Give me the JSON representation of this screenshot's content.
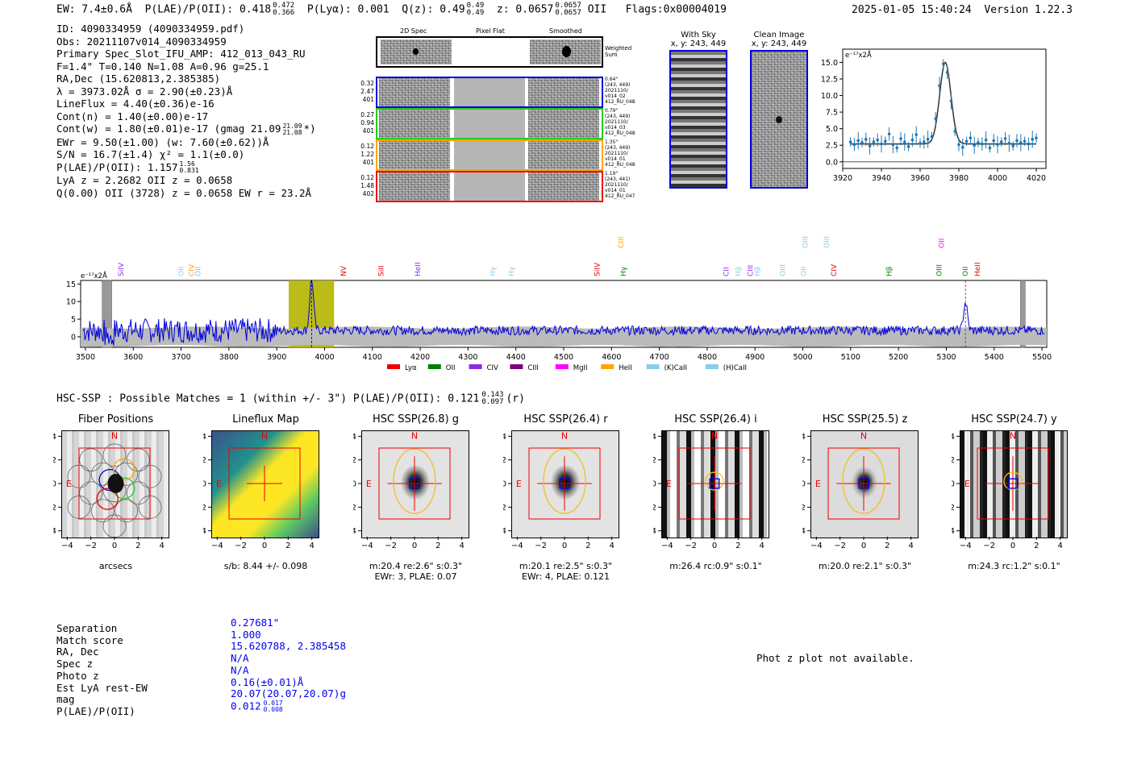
{
  "header": {
    "ew": "EW: 7.4±0.6Å",
    "plae_label": "P(LAE)/P(OII): 0.418",
    "plae_hi": "0.472",
    "plae_lo": "0.366",
    "plya": "P(Lyα): 0.001",
    "qz_label": "Q(z): 0.49",
    "qz_hi": "0.49",
    "qz_lo": "0.49",
    "z_label": "z: 0.0657",
    "z_hi": "0.0657",
    "z_lo": "0.0657",
    "z_line": "OII",
    "flags": "Flags:0x00004019",
    "timestamp": "2025-01-05 15:40:24",
    "version": "Version 1.22.3"
  },
  "info": {
    "id": "ID: 4090334959 (4090334959.pdf)",
    "obs": "Obs: 20211107v014_4090334959",
    "primary": "Primary Spec_Slot_IFU_AMP: 412_013_043_RU",
    "fiber": "F=1.4\"  T=0.140  N=1.08  A=0.96  g=25.1",
    "radec": "RA,Dec (15.620813,2.385385)",
    "lambda": "λ = 3973.02Å  σ = 2.90(±0.23)Å",
    "lineflux": "LineFlux = 4.40(±0.36)e-16",
    "contn": "Cont(n) = 1.40(±0.00)e-17",
    "contw": "Cont(w) = 1.80(±0.01)e-17 (gmag 21.09",
    "contw_hi": "21.09",
    "contw_lo": "21.08",
    "contw_end": "*)",
    "ewr": "EWr = 9.50(±1.00) (w: 7.60(±0.62))Å",
    "sn": "S/N = 16.7(±1.4)  χ² = 1.1(±0.0)",
    "plae": "P(LAE)/P(OII): 1.157",
    "plae_hi": "1.56",
    "plae_lo": "0.831",
    "lya": "LyA z = 2.2682  OII z = 0.0658",
    "q": "Q(0.00) OII (3728) z = 0.0658  EW r = 23.2Å"
  },
  "spec2d": {
    "col_titles": [
      "2D Spec",
      "Pixel Flat",
      "Smoothed"
    ],
    "weighted_label": "Weighted Sum",
    "rows": [
      {
        "left": [
          "0.32",
          "2.47",
          "401"
        ],
        "right": [
          "0.64\"",
          "(243, 449)",
          "2021110/",
          "v014_02",
          "412_RU_048"
        ],
        "color": "#0000dd"
      },
      {
        "left": [
          "0.27",
          "0.94",
          "401"
        ],
        "right": [
          "0.79\"",
          "(243, 449)",
          "2021110/",
          "v014_03",
          "412_RU_048"
        ],
        "color": "#22cc22"
      },
      {
        "left": [
          "0.12",
          "1.22",
          "401"
        ],
        "right": [
          "1.35\"",
          "(243, 449)",
          "2021110/",
          "v014_01",
          "412_RU_048"
        ],
        "color": "#ffa500"
      },
      {
        "left": [
          "0.12",
          "1.48",
          "402"
        ],
        "right": [
          "1.19\"",
          "(243, 441)",
          "2021110/",
          "v014_01",
          "412_RU_047"
        ],
        "color": "#ee0000"
      }
    ]
  },
  "sky": {
    "with_sky_title": "With Sky",
    "with_sky_xy": "x, y: 243, 449",
    "clean_title": "Clean Image",
    "clean_xy": "x, y: 243, 449"
  },
  "hsc": {
    "title": "HSC-SSP : Possible Matches = 1 (within +/- 3\")  P(LAE)/P(OII): 0.121",
    "hi": "0.143",
    "lo": "0.097",
    "suffix": "(r)",
    "cutouts": [
      {
        "title": "Fiber Positions",
        "cap1": "arcsecs",
        "cap2": ""
      },
      {
        "title": "Lineflux Map",
        "cap1": "s/b: 8.44 +/- 0.098",
        "cap2": ""
      },
      {
        "title": "HSC SSP(26.8) g",
        "cap1": "m:20.4  re:2.6\"  s:0.3\"",
        "cap2": "EWr: 3, PLAE: 0.07"
      },
      {
        "title": "HSC SSP(26.4) r",
        "cap1": "m:20.1  re:2.5\"  s:0.3\"",
        "cap2": "EWr: 4, PLAE: 0.121"
      },
      {
        "title": "HSC SSP(26.4) i",
        "cap1": "m:26.4 rc:0.9\"  s:0.1\"",
        "cap2": ""
      },
      {
        "title": "HSC SSP(25.5) z",
        "cap1": "m:20.0  re:2.1\"  s:0.3\"",
        "cap2": ""
      },
      {
        "title": "HSC SSP(24.7) y",
        "cap1": "m:24.3 rc:1.2\"  s:0.1\"",
        "cap2": ""
      }
    ],
    "compass_n": "N",
    "compass_e": "E"
  },
  "match": {
    "labels": [
      "Separation",
      "Match score",
      "RA, Dec",
      "Spec z",
      "Photo z",
      "Est LyA rest-EW",
      "mag",
      "P(LAE)/P(OII)"
    ],
    "values": [
      "0.27681\"",
      "1.000",
      "15.620788, 2.385458",
      "N/A",
      "N/A",
      "0.16(±0.01)Å",
      "20.07(20.07,20.07)g",
      "0.012"
    ],
    "plae_hi": "0.017",
    "plae_lo": "0.008",
    "photz_note": "Phot z plot not available."
  },
  "chart_data": [
    {
      "type": "scatter",
      "title": "",
      "unit_label": "e⁻¹⁷x2Å",
      "xlim": [
        3920,
        4025
      ],
      "ylim": [
        -1,
        17
      ],
      "xticks": [
        3920,
        3940,
        3960,
        3980,
        4000,
        4020
      ],
      "yticks": [
        0.0,
        2.5,
        5.0,
        7.5,
        10.0,
        12.5,
        15.0
      ],
      "x": [
        3924,
        3926,
        3928,
        3930,
        3932,
        3934,
        3936,
        3938,
        3940,
        3942,
        3944,
        3946,
        3948,
        3950,
        3952,
        3954,
        3956,
        3958,
        3960,
        3962,
        3964,
        3966,
        3968,
        3970,
        3972,
        3974,
        3976,
        3978,
        3980,
        3982,
        3984,
        3986,
        3988,
        3990,
        3992,
        3994,
        3996,
        3998,
        4000,
        4002,
        4004,
        4006,
        4008,
        4010,
        4012,
        4014,
        4016,
        4018,
        4020
      ],
      "y": [
        3.0,
        2.6,
        3.2,
        2.9,
        3.4,
        2.4,
        3.0,
        3.3,
        2.7,
        3.1,
        4.2,
        2.6,
        2.1,
        3.5,
        3.0,
        2.3,
        3.3,
        4.1,
        2.8,
        3.0,
        3.4,
        3.8,
        6.5,
        11.5,
        14.8,
        13.5,
        9.2,
        4.6,
        2.6,
        2.2,
        3.1,
        3.6,
        2.5,
        2.9,
        2.7,
        3.3,
        2.1,
        3.2,
        2.6,
        3.0,
        3.5,
        2.8,
        2.4,
        3.2,
        2.9,
        3.1,
        2.7,
        3.4,
        3.6
      ],
      "model": {
        "center": 3973.0,
        "sigma": 2.9,
        "amp": 12.3,
        "baseline": 2.7
      },
      "series_color": "#1f77b4",
      "model_color": "#333333"
    },
    {
      "type": "line",
      "title": "",
      "unit_label": "e⁻¹⁷x2Å",
      "xlim": [
        3490,
        5510
      ],
      "ylim": [
        -3,
        16
      ],
      "xticks": [
        3500,
        3600,
        3700,
        3800,
        3900,
        4000,
        4100,
        4200,
        4300,
        4400,
        4500,
        4600,
        4700,
        4800,
        4900,
        5000,
        5100,
        5200,
        5300,
        5400,
        5500
      ],
      "yticks": [
        0,
        5,
        10,
        15
      ],
      "line_color": "#0000dd",
      "highlight_range": [
        3925,
        4020
      ],
      "detection_wavelength": 3973,
      "emission_peaks": [
        {
          "x": 3973,
          "height": 15
        },
        {
          "x": 5340,
          "height": 8
        }
      ],
      "masked_ranges": [
        [
          3535,
          3555
        ],
        [
          5455,
          5465
        ]
      ],
      "line_markers": [
        {
          "label": "SiIV",
          "x": 3574,
          "color": "#8a2be2",
          "row": 1
        },
        {
          "label": "OII",
          "x": 3700,
          "color": "#87ceeb",
          "row": 1
        },
        {
          "label": "CIV",
          "x": 3722,
          "color": "#ffa500",
          "row": 1
        },
        {
          "label": "OII",
          "x": 3735,
          "color": "#87ceeb",
          "row": 1
        },
        {
          "label": "NV",
          "x": 4040,
          "color": "#ee0000",
          "row": 1
        },
        {
          "label": "SiII",
          "x": 4118,
          "color": "#ee0000",
          "row": 1
        },
        {
          "label": "HeII",
          "x": 4195,
          "color": "#8a2be2",
          "row": 1
        },
        {
          "label": "Hγ",
          "x": 4352,
          "color": "#87ceeb",
          "row": 1
        },
        {
          "label": "Hγ",
          "x": 4390,
          "color": "#87ceeb",
          "row": 1
        },
        {
          "label": "CIII",
          "x": 4620,
          "color": "#ffa500",
          "row": 0
        },
        {
          "label": "SiIV",
          "x": 4570,
          "color": "#ee0000",
          "row": 1
        },
        {
          "label": "Hγ",
          "x": 4625,
          "color": "#008000",
          "row": 1
        },
        {
          "label": "CII",
          "x": 4840,
          "color": "#8a2be2",
          "row": 1
        },
        {
          "label": "Hβ",
          "x": 4865,
          "color": "#87ceeb",
          "row": 1
        },
        {
          "label": "CIII",
          "x": 4890,
          "color": "#8a2be2",
          "row": 1
        },
        {
          "label": "Hβ",
          "x": 4905,
          "color": "#87ceeb",
          "row": 1
        },
        {
          "label": "OIII",
          "x": 4958,
          "color": "#87ceeb",
          "row": 1
        },
        {
          "label": "OIII",
          "x": 5005,
          "color": "#87ceeb",
          "row": 0
        },
        {
          "label": "OII",
          "x": 5002,
          "color": "#87ceeb",
          "row": 1
        },
        {
          "label": "OIII",
          "x": 5050,
          "color": "#87ceeb",
          "row": 0
        },
        {
          "label": "CIV",
          "x": 5065,
          "color": "#ee0000",
          "row": 1
        },
        {
          "label": "Hβ",
          "x": 5180,
          "color": "#008000",
          "row": 1
        },
        {
          "label": "OII",
          "x": 5290,
          "color": "#ff00ff",
          "row": 0
        },
        {
          "label": "OIII",
          "x": 5285,
          "color": "#008000",
          "row": 1
        },
        {
          "label": "OII",
          "x": 5340,
          "color": "#008000",
          "row": 1
        },
        {
          "label": "HeII",
          "x": 5365,
          "color": "#ee0000",
          "row": 1
        }
      ],
      "legend": [
        {
          "label": "Lyα",
          "color": "#ee0000"
        },
        {
          "label": "OII",
          "color": "#008000"
        },
        {
          "label": "CIV",
          "color": "#8a2be2"
        },
        {
          "label": "CIII",
          "color": "#800080"
        },
        {
          "label": "MgII",
          "color": "#ff00ff"
        },
        {
          "label": "HeII",
          "color": "#ffa500"
        },
        {
          "label": "(K)CaII",
          "color": "#87ceeb"
        },
        {
          "label": "(H)CaII",
          "color": "#87ceeb"
        }
      ]
    }
  ]
}
